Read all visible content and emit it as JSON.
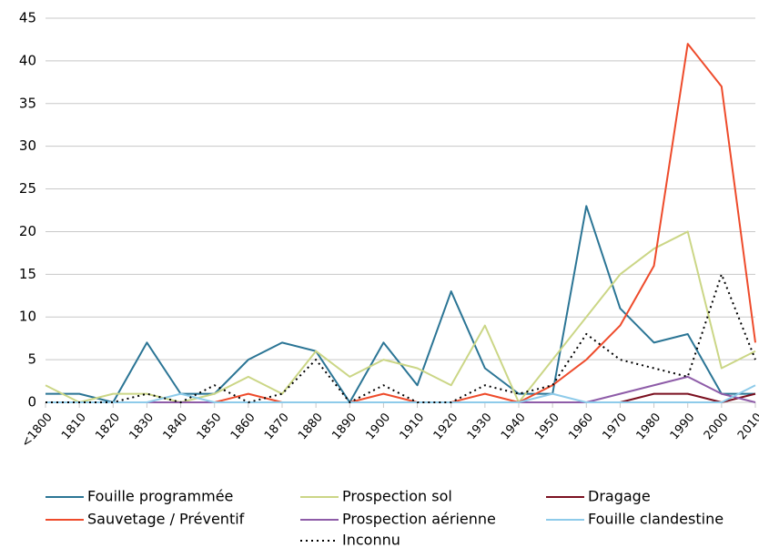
{
  "chart_data": {
    "type": "line",
    "categories": [
      "<1800",
      "1810",
      "1820",
      "1830",
      "1840",
      "1850",
      "1860",
      "1870",
      "1880",
      "1890",
      "1900",
      "1910",
      "1920",
      "1930",
      "1940",
      "1950",
      "1960",
      "1970",
      "1980",
      "1990",
      "2000",
      "2010"
    ],
    "series": [
      {
        "name": "Fouille programmée",
        "color": "#2b7595",
        "dash": false,
        "values": [
          1,
          1,
          0,
          7,
          1,
          1,
          5,
          7,
          6,
          0,
          7,
          2,
          13,
          4,
          1,
          1,
          23,
          11,
          7,
          8,
          1,
          1
        ]
      },
      {
        "name": "Prospection sol",
        "color": "#cbd686",
        "dash": false,
        "values": [
          2,
          0,
          1,
          1,
          0,
          1,
          3,
          1,
          6,
          3,
          5,
          4,
          2,
          9,
          0,
          5,
          10,
          15,
          18,
          20,
          4,
          6
        ]
      },
      {
        "name": "Dragage",
        "color": "#7b1020",
        "dash": false,
        "values": [
          null,
          null,
          null,
          0,
          0,
          0,
          0,
          0,
          0,
          0,
          0,
          0,
          0,
          0,
          0,
          0,
          0,
          0,
          1,
          1,
          0,
          1
        ]
      },
      {
        "name": "Sauvetage / Préventif",
        "color": "#ee4b2b",
        "dash": false,
        "values": [
          null,
          null,
          null,
          null,
          0,
          0,
          1,
          0,
          0,
          0,
          1,
          0,
          0,
          1,
          0,
          2,
          5,
          9,
          16,
          42,
          37,
          7
        ]
      },
      {
        "name": "Prospection aérienne",
        "color": "#8e5ca8",
        "dash": false,
        "values": [
          0,
          0,
          0,
          0,
          0,
          0,
          0,
          0,
          0,
          0,
          0,
          0,
          0,
          0,
          0,
          0,
          0,
          1,
          2,
          3,
          1,
          0
        ]
      },
      {
        "name": "Fouille clandestine",
        "color": "#8ecbea",
        "dash": false,
        "values": [
          0,
          0,
          0,
          0,
          1,
          0,
          0,
          0,
          0,
          0,
          0,
          0,
          0,
          0,
          0,
          1,
          0,
          0,
          0,
          0,
          0,
          2
        ]
      },
      {
        "name": "Inconnu",
        "color": "#000000",
        "dash": true,
        "values": [
          0,
          0,
          0,
          1,
          0,
          2,
          0,
          1,
          5,
          0,
          2,
          0,
          0,
          2,
          1,
          2,
          8,
          5,
          4,
          3,
          15,
          5
        ]
      }
    ],
    "ylim": [
      0,
      45
    ],
    "yticks": [
      0,
      5,
      10,
      15,
      20,
      25,
      30,
      35,
      40,
      45
    ],
    "grid": true,
    "legend": "bottom"
  }
}
